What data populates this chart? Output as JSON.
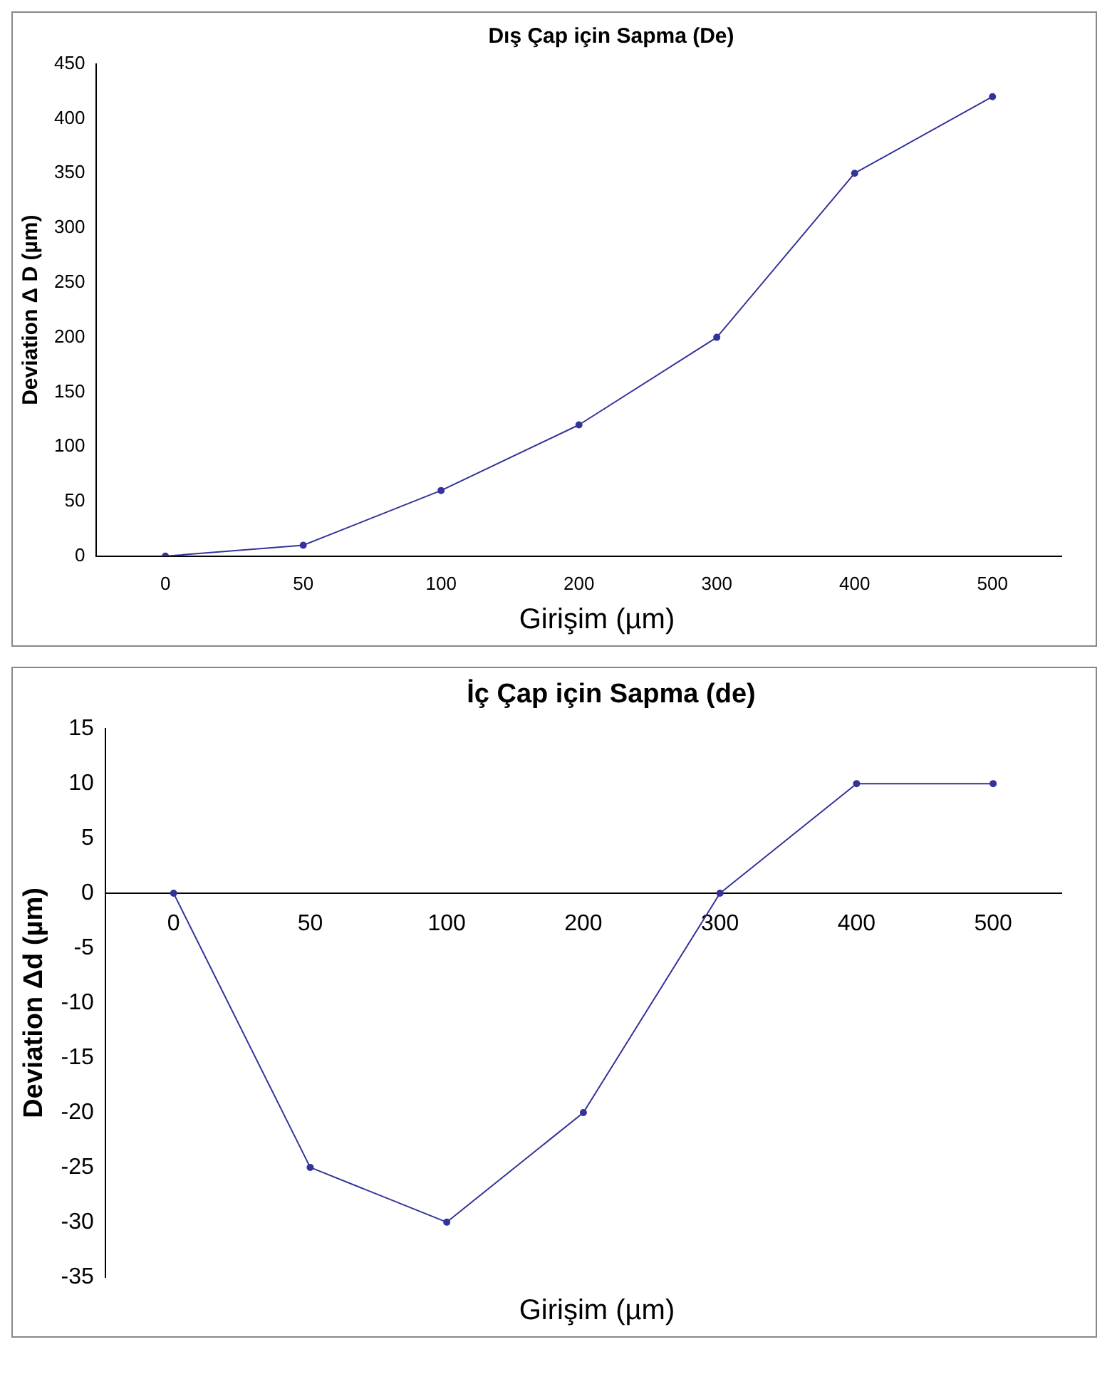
{
  "chart_data": [
    {
      "type": "line",
      "title": "Dış Çap  için Sapma (De)",
      "xlabel": "Girişim (µm)",
      "ylabel": "Deviation Δ D (µm)",
      "categories": [
        "0",
        "50",
        "100",
        "200",
        "300",
        "400",
        "500"
      ],
      "series": [
        {
          "color": "#333399",
          "values": [
            0,
            10,
            60,
            120,
            200,
            350,
            420
          ]
        }
      ],
      "ylim": [
        0,
        450
      ],
      "yticks": [
        0,
        50,
        100,
        150,
        200,
        250,
        300,
        350,
        400,
        450
      ],
      "grid": false,
      "legend": false,
      "marker": "circle",
      "line_style": "solid"
    },
    {
      "type": "line",
      "title": "İç Çap  için Sapma (de)",
      "xlabel": "Girişim (µm)",
      "ylabel": "Deviation Δd (µm)",
      "categories": [
        "0",
        "50",
        "100",
        "200",
        "300",
        "400",
        "500"
      ],
      "series": [
        {
          "color": "#333399",
          "values": [
            0,
            -25,
            -30,
            -20,
            0,
            10,
            10
          ]
        }
      ],
      "ylim": [
        -35,
        15
      ],
      "yticks": [
        -35,
        -30,
        -25,
        -20,
        -15,
        -10,
        -5,
        0,
        5,
        10,
        15
      ],
      "grid": false,
      "legend": false,
      "marker": "circle",
      "line_style": "solid"
    }
  ]
}
